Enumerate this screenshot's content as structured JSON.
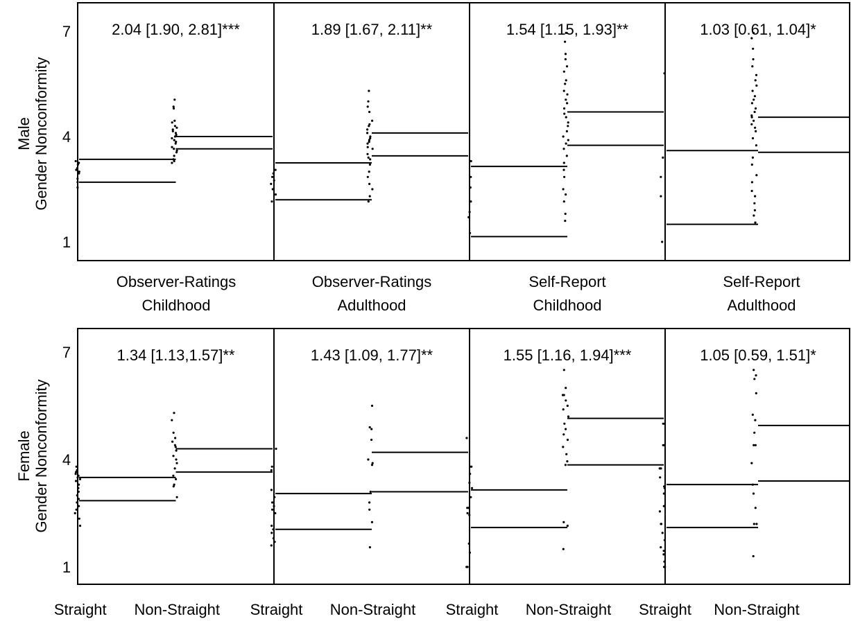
{
  "colors": {
    "foreground": "#000000",
    "background": "#ffffff"
  },
  "categories": [
    "Straight",
    "Non-Straight"
  ],
  "panel_titles": [
    [
      "Observer-Ratings",
      "Childhood"
    ],
    [
      "Observer-Ratings",
      "Adulthood"
    ],
    [
      "Self-Report",
      "Childhood"
    ],
    [
      "Self-Report",
      "Adulthood"
    ]
  ],
  "rows": [
    {
      "ylabel_lines": [
        "Male",
        "Gender Nonconformity"
      ]
    },
    {
      "ylabel_lines": [
        "Female",
        "Gender Nonconformity"
      ]
    }
  ],
  "chart_data": {
    "type": "scatter",
    "description_kind": "faceted strip plot with two horizontal reference lines per group",
    "ylim": [
      0.5,
      7.5
    ],
    "yticks": [
      1,
      4,
      7
    ],
    "grid": false,
    "panels": [
      {
        "row": "Male",
        "measure": "Observer-Ratings Childhood",
        "annotation": "2.04 [1.90, 2.81]***",
        "groups": [
          {
            "name": "Straight",
            "lines": [
              3.35,
              2.7
            ],
            "points": [
              3.3,
              3.25,
              3.2,
              3.1,
              3.05,
              3.0,
              2.95,
              2.8,
              2.7,
              2.55
            ]
          },
          {
            "name": "Non-Straight",
            "lines": [
              4.0,
              3.65
            ],
            "points": [
              5.05,
              4.85,
              4.8,
              4.45,
              4.4,
              4.3,
              4.25,
              4.2,
              4.15,
              4.1,
              4.05,
              4.0,
              3.95,
              3.9,
              3.85,
              3.8,
              3.7,
              3.65,
              3.6,
              3.55,
              3.45,
              3.35,
              3.3,
              3.25
            ]
          }
        ]
      },
      {
        "row": "Male",
        "measure": "Observer-Ratings Adulthood",
        "annotation": "1.89 [1.67, 2.11]**",
        "groups": [
          {
            "name": "Straight",
            "lines": [
              3.25,
              2.2
            ],
            "points": [
              3.05,
              2.95,
              2.85,
              2.75,
              2.65,
              2.5,
              2.35,
              2.15
            ]
          },
          {
            "name": "Non-Straight",
            "lines": [
              4.1,
              3.45
            ],
            "points": [
              5.3,
              5.0,
              4.85,
              4.7,
              4.45,
              4.35,
              4.3,
              4.2,
              4.1,
              4.0,
              3.95,
              3.9,
              3.85,
              3.8,
              3.7,
              3.65,
              3.5,
              3.4,
              3.35,
              3.2,
              3.0,
              2.85,
              2.65,
              2.5,
              2.3,
              2.15
            ]
          }
        ]
      },
      {
        "row": "Male",
        "measure": "Self-Report Childhood",
        "annotation": "1.54 [1.15, 1.93]**",
        "groups": [
          {
            "name": "Straight",
            "lines": [
              3.15,
              1.15
            ],
            "points": [
              3.3,
              2.85,
              2.55,
              2.15,
              1.85,
              1.7,
              1.25
            ]
          },
          {
            "name": "Non-Straight",
            "lines": [
              4.7,
              3.75
            ],
            "points": [
              6.95,
              6.7,
              6.35,
              6.2,
              6.0,
              5.85,
              5.6,
              5.5,
              5.3,
              5.2,
              5.05,
              4.95,
              4.8,
              4.65,
              4.55,
              4.4,
              4.3,
              4.15,
              4.0,
              3.9,
              3.8,
              3.65,
              3.45,
              3.25,
              3.05,
              2.85,
              2.5,
              2.35,
              2.15,
              1.8,
              1.6
            ]
          }
        ]
      },
      {
        "row": "Male",
        "measure": "Self-Report Adulthood",
        "annotation": "1.03 [0.61, 1.04]*",
        "groups": [
          {
            "name": "Straight",
            "lines": [
              3.6,
              1.5
            ],
            "points": [
              5.8,
              3.4,
              2.85,
              2.3,
              1.0
            ]
          },
          {
            "name": "Non-Straight",
            "lines": [
              4.55,
              3.55
            ],
            "points": [
              6.95,
              6.8,
              6.5,
              6.2,
              6.0,
              5.75,
              5.6,
              5.45,
              5.3,
              5.15,
              5.05,
              4.95,
              4.8,
              4.7,
              4.6,
              4.55,
              4.45,
              4.35,
              4.25,
              4.15,
              3.95,
              3.75,
              3.4,
              3.2,
              2.9,
              2.7,
              2.45,
              2.3,
              2.1,
              1.9,
              1.75,
              1.55
            ]
          }
        ]
      },
      {
        "row": "Female",
        "measure": "Observer-Ratings Childhood",
        "annotation": "1.34 [1.13,1.57]**",
        "groups": [
          {
            "name": "Straight",
            "lines": [
              3.5,
              2.85
            ],
            "points": [
              3.8,
              3.7,
              3.65,
              3.6,
              3.55,
              3.5,
              3.45,
              3.4,
              3.3,
              3.2,
              3.1,
              3.0,
              2.9,
              2.8,
              2.7,
              2.6,
              2.5,
              2.35,
              2.15
            ]
          },
          {
            "name": "Non-Straight",
            "lines": [
              4.3,
              3.65
            ],
            "points": [
              5.3,
              5.1,
              4.75,
              4.6,
              4.5,
              4.4,
              4.35,
              4.25,
              4.1,
              4.0,
              3.9,
              3.75,
              3.55,
              3.45,
              3.3,
              3.25,
              2.95
            ]
          }
        ]
      },
      {
        "row": "Female",
        "measure": "Observer-Ratings Adulthood",
        "annotation": "1.43 [1.09, 1.77]**",
        "groups": [
          {
            "name": "Straight",
            "lines": [
              3.05,
              2.05
            ],
            "points": [
              4.3,
              3.8,
              3.7,
              3.15,
              2.95,
              2.8,
              2.7,
              2.6,
              2.5,
              2.15,
              2.05,
              1.95,
              1.8,
              1.7,
              1.6
            ]
          },
          {
            "name": "Non-Straight",
            "lines": [
              4.2,
              3.1
            ],
            "points": [
              5.5,
              4.9,
              4.85,
              4.55,
              4.0,
              3.9,
              3.85,
              3.1,
              2.8,
              2.6,
              2.25,
              1.55
            ]
          }
        ]
      },
      {
        "row": "Female",
        "measure": "Self-Report Childhood",
        "annotation": "1.55 [1.16, 1.94]***",
        "groups": [
          {
            "name": "Straight",
            "lines": [
              3.15,
              2.1
            ],
            "points": [
              4.6,
              3.8,
              3.8,
              3.6,
              3.35,
              3.2,
              2.95,
              2.65,
              2.65,
              2.5,
              2.45,
              1.65,
              1.4,
              1.0,
              1.0
            ]
          },
          {
            "name": "Non-Straight",
            "lines": [
              5.15,
              3.85
            ],
            "points": [
              6.5,
              6.0,
              5.8,
              5.8,
              5.65,
              5.5,
              5.4,
              5.2,
              5.0,
              4.85,
              4.7,
              4.55,
              4.35,
              4.15,
              3.95,
              3.85,
              2.25,
              2.15,
              1.5
            ]
          }
        ]
      },
      {
        "row": "Female",
        "measure": "Self-Report Adulthood",
        "annotation": "1.05 [0.59, 1.51]*",
        "groups": [
          {
            "name": "Straight",
            "lines": [
              3.3,
              2.1
            ],
            "points": [
              5.0,
              5.0,
              4.4,
              4.4,
              3.75,
              3.75,
              3.5,
              3.25,
              3.2,
              3.05,
              2.7,
              2.55,
              2.2,
              2.2,
              1.95,
              1.75,
              1.55,
              1.45,
              1.35,
              1.15,
              1.0,
              1.0
            ]
          },
          {
            "name": "Non-Straight",
            "lines": [
              4.95,
              3.4
            ],
            "points": [
              6.5,
              6.35,
              6.25,
              5.85,
              5.25,
              5.1,
              4.75,
              4.4,
              4.4,
              3.9,
              3.3,
              3.05,
              2.65,
              2.2,
              2.2,
              1.3
            ]
          }
        ]
      }
    ]
  }
}
